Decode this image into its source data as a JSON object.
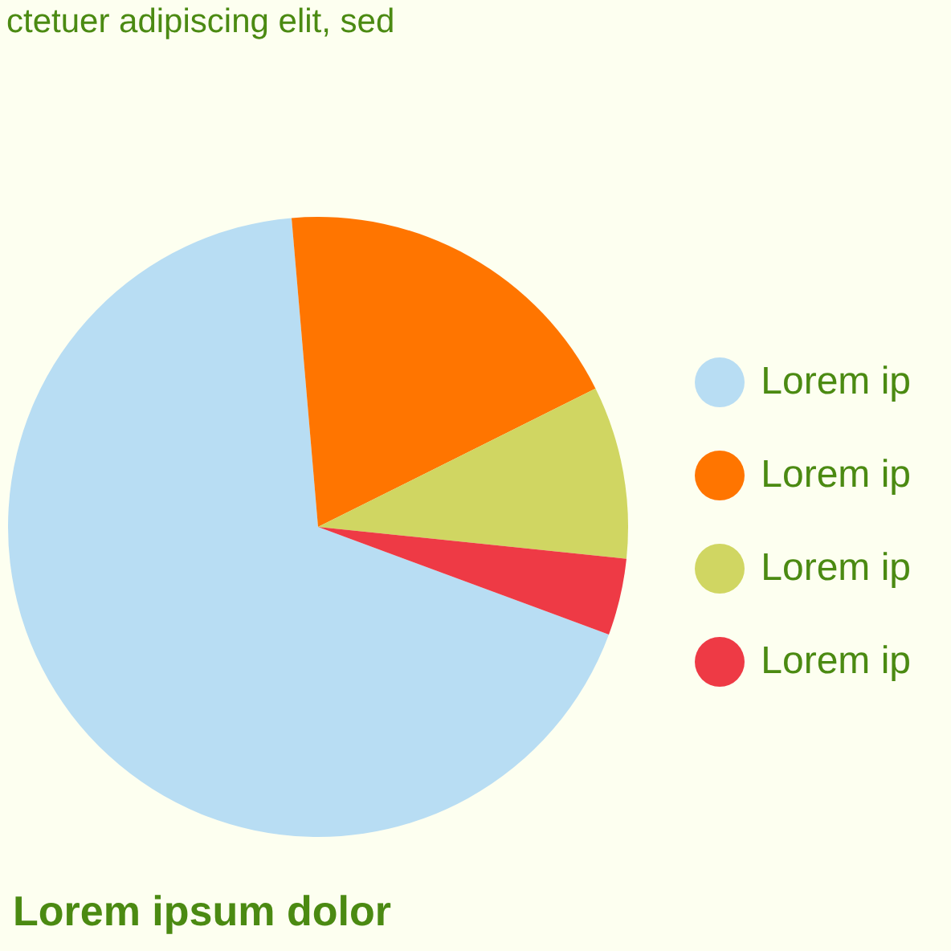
{
  "chart_data": {
    "type": "pie",
    "subtitle": "ctetuer adipiscing elit, sed",
    "categories": [
      "Lorem ip",
      "Lorem ip",
      "Lorem ip",
      "Lorem ip"
    ],
    "values": [
      68,
      19,
      9,
      4
    ],
    "colors": [
      "#b8ddf3",
      "#ff7500",
      "#d0d662",
      "#ee3a45"
    ],
    "legend": "right",
    "annotations": [
      "Lorem ipsum dolor"
    ]
  }
}
